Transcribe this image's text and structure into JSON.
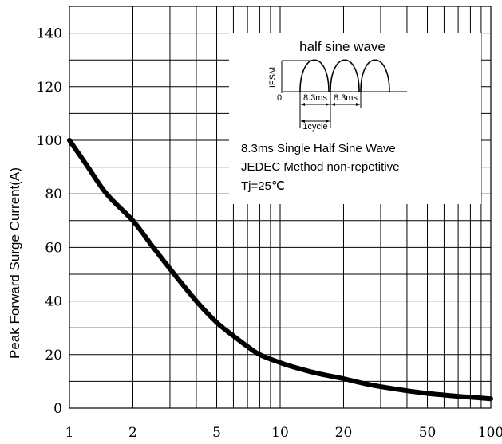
{
  "chart_data": {
    "type": "line",
    "title": "",
    "xlabel": "",
    "ylabel": "Peak Forward Surge Current(A)",
    "x_scale": "log",
    "xlim": [
      1,
      100
    ],
    "ylim": [
      0,
      150
    ],
    "x_ticks": [
      1,
      2,
      5,
      10,
      20,
      50,
      100
    ],
    "y_ticks": [
      0,
      20,
      40,
      60,
      80,
      100,
      120,
      140
    ],
    "x_minor_grid": [
      3,
      4,
      6,
      7,
      8,
      9,
      30,
      40,
      60,
      70,
      80,
      90
    ],
    "y_grid_step": 10,
    "grid": true,
    "series": [
      {
        "x": [
          1,
          1.2,
          1.5,
          2,
          2.5,
          3,
          4,
          5,
          6,
          7,
          8,
          10,
          12,
          15,
          20,
          25,
          30,
          40,
          50,
          60,
          70,
          80,
          100
        ],
        "values": [
          100,
          91,
          80,
          70,
          60,
          52,
          40,
          32,
          27,
          23,
          20,
          17,
          15,
          13,
          11,
          9.2,
          8,
          6.5,
          5.5,
          4.9,
          4.4,
          4.1,
          3.5
        ]
      }
    ],
    "inset": {
      "title": "half sine wave",
      "axis_label": "IFSM",
      "origin_label": "0",
      "period_label": "8.3ms",
      "cycle_label": "1cycle",
      "notes": [
        "8.3ms Single Half Sine Wave",
        "JEDEC Method non-repetitive",
        "Tj=25℃"
      ]
    }
  }
}
